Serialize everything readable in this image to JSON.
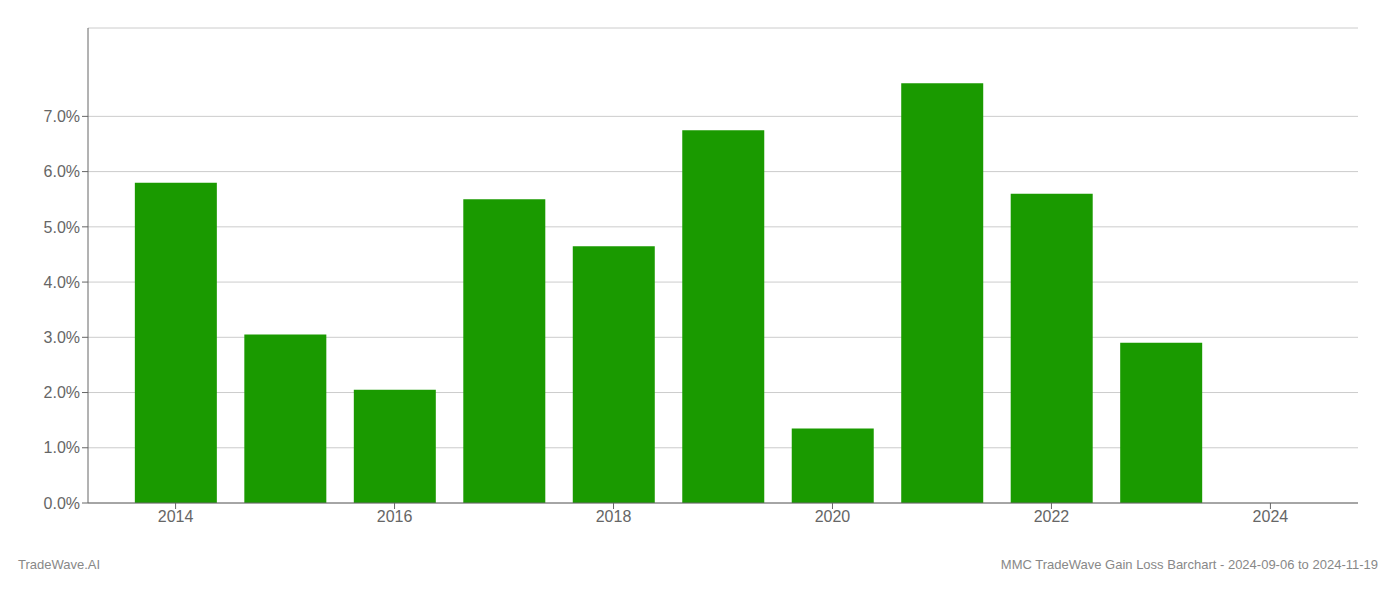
{
  "chart_data": {
    "type": "bar",
    "x": [
      2014,
      2015,
      2016,
      2017,
      2018,
      2019,
      2020,
      2021,
      2022,
      2023
    ],
    "values": [
      0.058,
      0.0305,
      0.0205,
      0.055,
      0.0465,
      0.0675,
      0.0135,
      0.076,
      0.056,
      0.029
    ],
    "color": "#1a9a00",
    "xlim": [
      2013.2,
      2024.8
    ],
    "xticks": [
      2014,
      2016,
      2018,
      2020,
      2022,
      2024
    ],
    "ylim": [
      0.0,
      0.086
    ],
    "yticks": [
      {
        "value": 0.0,
        "label": "0.0%"
      },
      {
        "value": 0.01,
        "label": "1.0%"
      },
      {
        "value": 0.02,
        "label": "2.0%"
      },
      {
        "value": 0.03,
        "label": "3.0%"
      },
      {
        "value": 0.04,
        "label": "4.0%"
      },
      {
        "value": 0.05,
        "label": "5.0%"
      },
      {
        "value": 0.06,
        "label": "6.0%"
      },
      {
        "value": 0.07,
        "label": "7.0%"
      }
    ],
    "grid": true,
    "annotations": [
      "TradeWave.AI",
      "MMC TradeWave Gain Loss Barchart - 2024-09-06 to 2024-11-19"
    ]
  }
}
